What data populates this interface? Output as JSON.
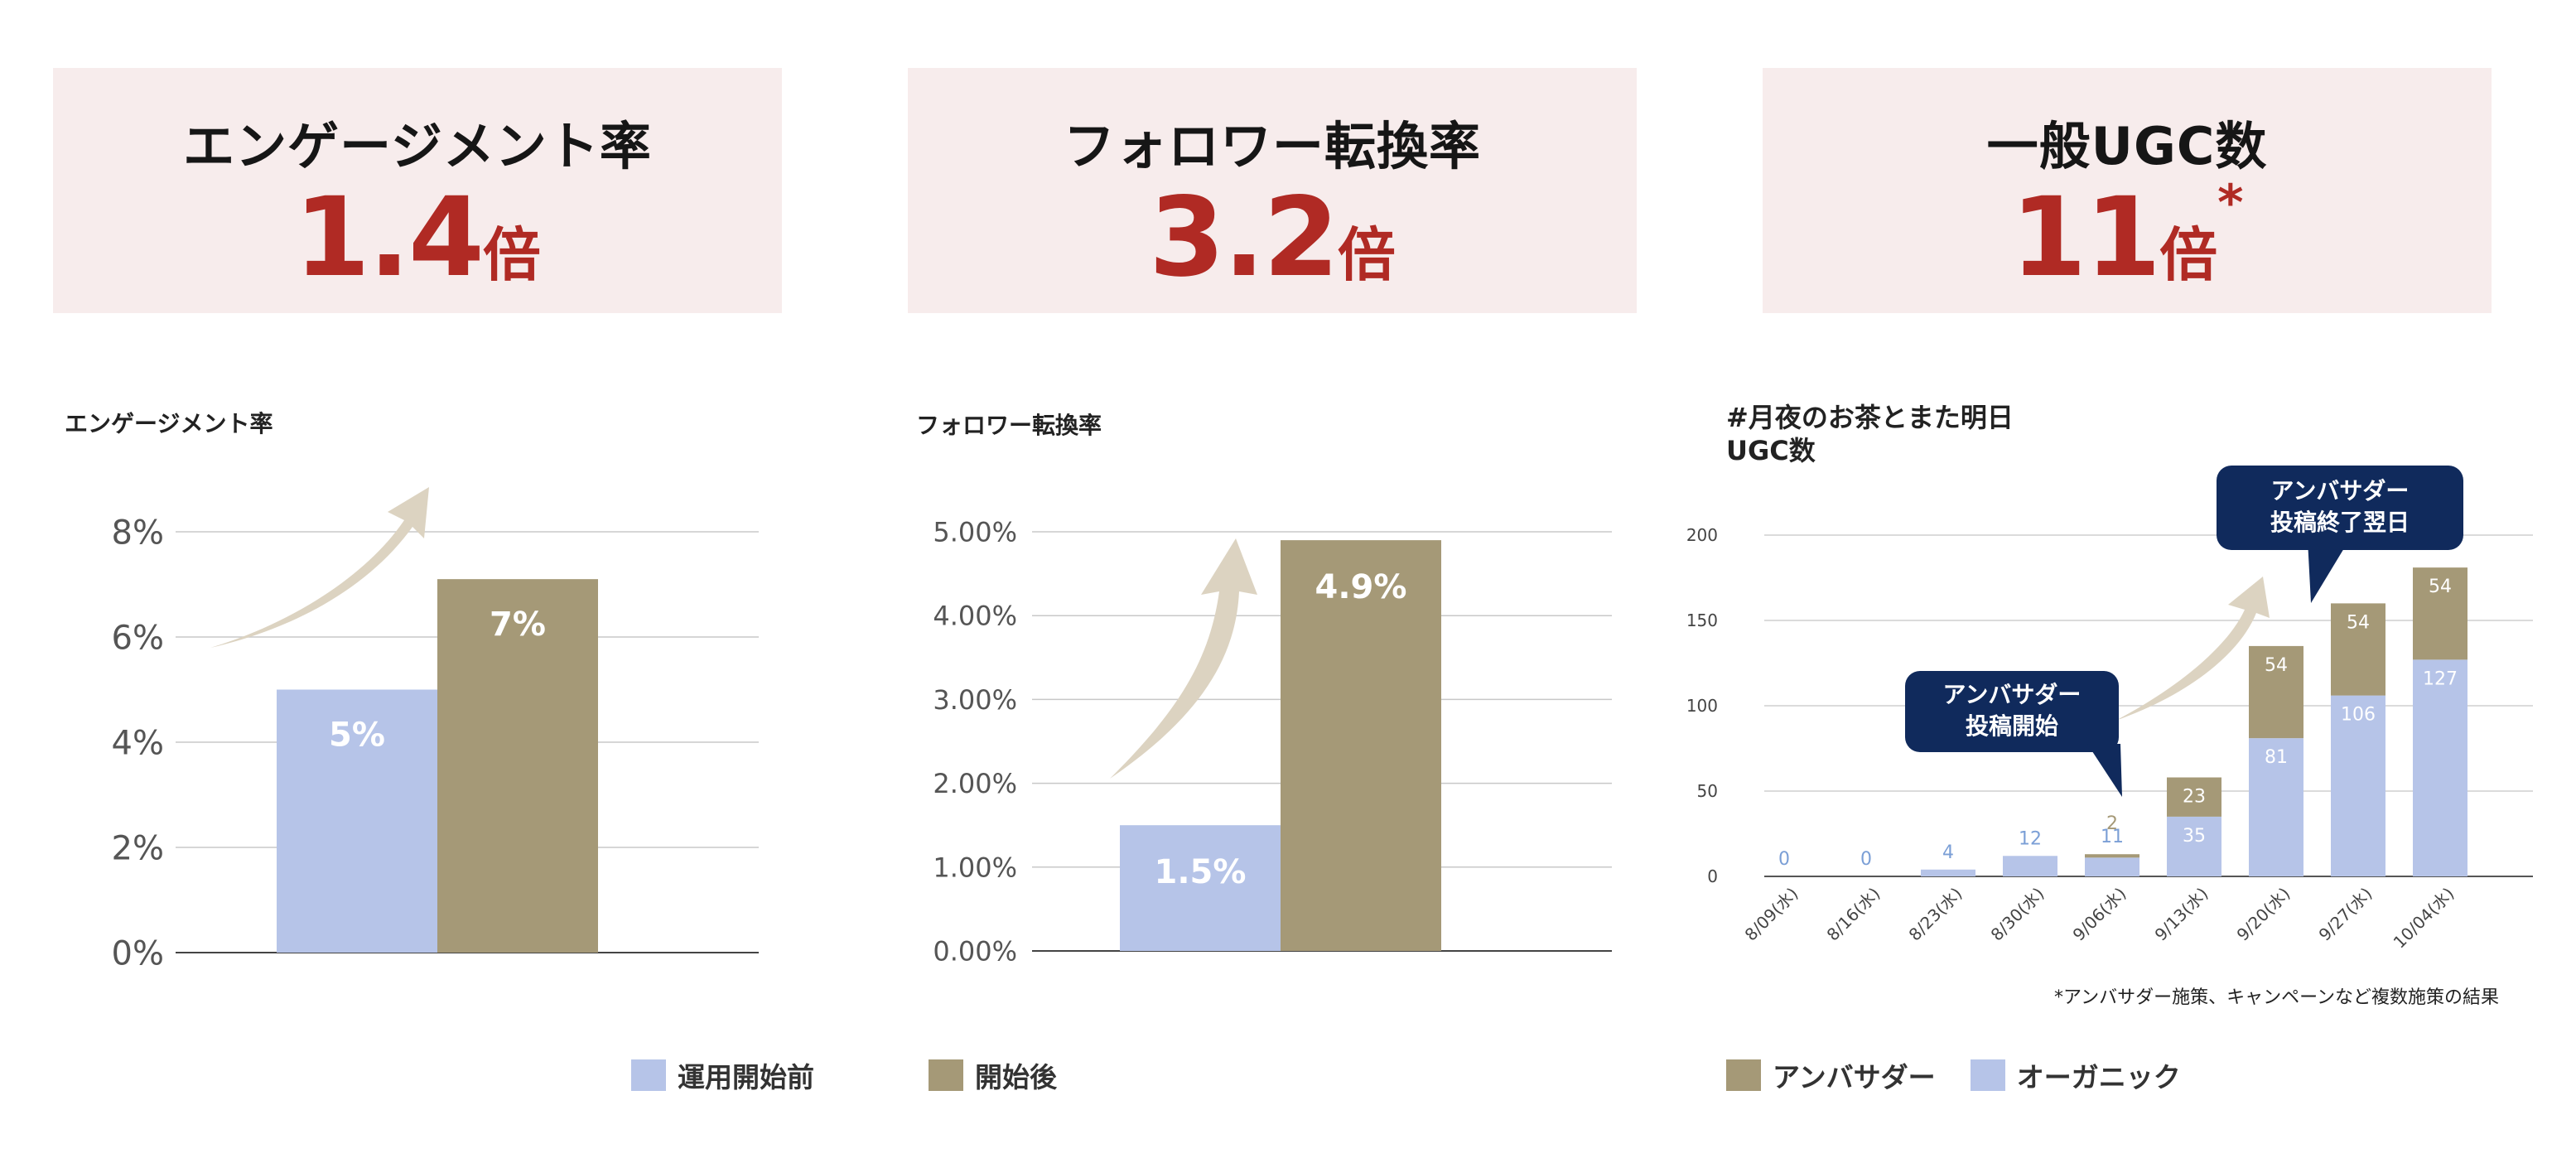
{
  "kpis": [
    {
      "label": "エンゲージメント率",
      "number": "1.4",
      "unit": "倍",
      "mark": ""
    },
    {
      "label": "フォロワー転換率",
      "number": "3.2",
      "unit": "倍",
      "mark": ""
    },
    {
      "label": "一般UGC数",
      "number": "11",
      "unit": "倍",
      "mark": "*"
    }
  ],
  "colors": {
    "before": "#b6c4e8",
    "after": "#a59977",
    "accent": "#b02a24",
    "kpi_bg": "#f7ecec",
    "callout": "#102a5c",
    "arrow": "#dcd3c1"
  },
  "chart_data": [
    {
      "type": "bar",
      "title": "エンゲージメント率",
      "ylim": [
        0,
        8
      ],
      "yticks": [
        "0%",
        "2%",
        "4%",
        "6%",
        "8%"
      ],
      "series": [
        {
          "name": "運用開始前",
          "values": [
            5
          ],
          "label": "5%"
        },
        {
          "name": "開始後",
          "values": [
            7.1
          ],
          "label": "7%"
        }
      ],
      "grid": true
    },
    {
      "type": "bar",
      "title": "フォロワー転換率",
      "ylim": [
        0,
        5
      ],
      "yticks": [
        "0.00%",
        "1.00%",
        "2.00%",
        "3.00%",
        "4.00%",
        "5.00%"
      ],
      "series": [
        {
          "name": "運用開始前",
          "values": [
            1.5
          ],
          "label": "1.5%"
        },
        {
          "name": "開始後",
          "values": [
            4.9
          ],
          "label": "4.9%"
        }
      ],
      "grid": true
    },
    {
      "type": "bar",
      "stacked": true,
      "title": "#月夜のお茶とまた明日\nUGC数",
      "categories": [
        "8/09(水)",
        "8/16(水)",
        "8/23(水)",
        "8/30(水)",
        "9/06(水)",
        "9/13(水)",
        "9/20(水)",
        "9/27(水)",
        "10/04(水)"
      ],
      "ylim": [
        0,
        200
      ],
      "yticks": [
        "0",
        "50",
        "100",
        "150",
        "200"
      ],
      "series": [
        {
          "name": "オーガニック",
          "values": [
            0,
            0,
            4,
            12,
            11,
            35,
            81,
            106,
            127
          ]
        },
        {
          "name": "アンバサダー",
          "values": [
            0,
            0,
            0,
            0,
            2,
            23,
            54,
            54,
            54
          ]
        }
      ],
      "annotations": [
        "アンバサダー\n投稿開始",
        "アンバサダー\n投稿終了翌日"
      ],
      "note": "*アンバサダー施策、キャンペーンなど複数施策の結果",
      "grid": true
    }
  ],
  "legend_left": [
    {
      "label": "運用開始前",
      "color": "#b6c4e8"
    },
    {
      "label": "開始後",
      "color": "#a59977"
    }
  ],
  "legend_right": [
    {
      "label": "アンバサダー",
      "color": "#a59977"
    },
    {
      "label": "オーガニック",
      "color": "#b6c4e8"
    }
  ]
}
